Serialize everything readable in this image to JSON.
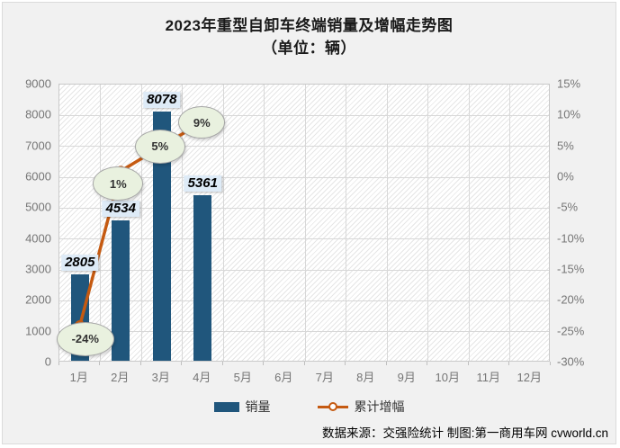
{
  "header": {
    "title": "2023年重型自卸车终端销量及增幅走势图",
    "subtitle": "（单位：辆）"
  },
  "footer": {
    "source_text": "数据来源：交强险统计 制图:第一商用车网 cvworld.cn"
  },
  "legend": {
    "sales_label": "销量",
    "growth_label": "累计增幅"
  },
  "colors": {
    "bar": "#20567C",
    "line": "#C55A11",
    "bar_label_bg": "#DEEBF7",
    "pct_label_bg": "#E9F1DF",
    "pct_label_border": "#A6A6A6",
    "grid": "#D8D8D8",
    "axis_text": "#767676"
  },
  "chart_data": {
    "type": "bar",
    "subtype": "bar+line combo, dual axis",
    "title": "2023年重型自卸车终端销量及增幅走势图（单位：辆）",
    "categories": [
      "1月",
      "2月",
      "3月",
      "4月",
      "5月",
      "6月",
      "7月",
      "8月",
      "9月",
      "10月",
      "11月",
      "12月"
    ],
    "series": [
      {
        "name": "销量",
        "type": "bar",
        "axis": "left",
        "values": [
          2805,
          4534,
          8078,
          5361,
          null,
          null,
          null,
          null,
          null,
          null,
          null,
          null
        ]
      },
      {
        "name": "累计增幅",
        "type": "line",
        "axis": "right",
        "values_percent": [
          -24,
          1,
          5,
          9,
          null,
          null,
          null,
          null,
          null,
          null,
          null,
          null
        ],
        "point_labels": [
          "-24%",
          "1%",
          "5%",
          "9%"
        ]
      }
    ],
    "left_axis": {
      "min": 0,
      "max": 9000,
      "step": 1000,
      "ticks": [
        "9000",
        "8000",
        "7000",
        "6000",
        "5000",
        "4000",
        "3000",
        "2000",
        "1000",
        "0"
      ]
    },
    "right_axis": {
      "min": -30,
      "max": 15,
      "step": 5,
      "ticks": [
        "15%",
        "10%",
        "5%",
        "0%",
        "-5%",
        "-10%",
        "-15%",
        "-20%",
        "-25%",
        "-30%"
      ]
    },
    "grid": true,
    "legend_position": "bottom"
  }
}
